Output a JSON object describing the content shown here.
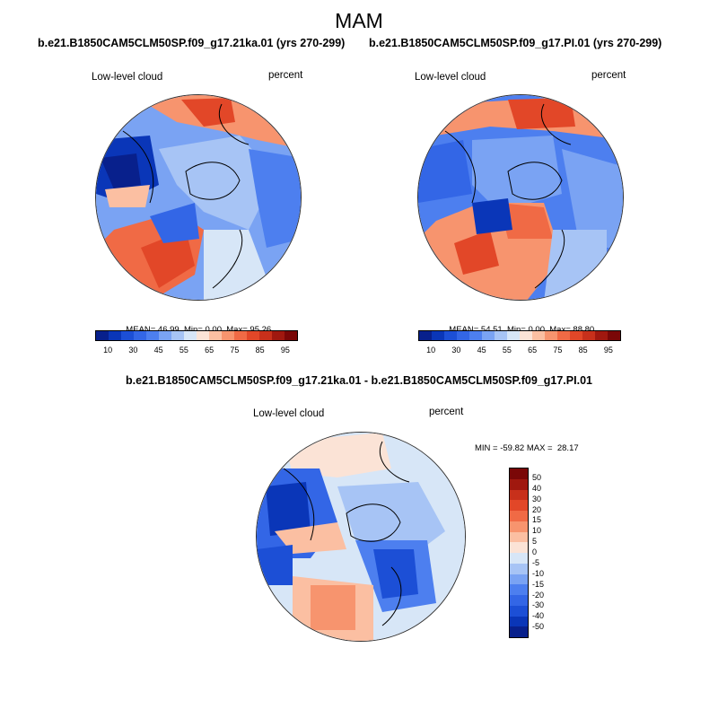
{
  "title": "MAM",
  "panels": {
    "top_left": {
      "case": "b.e21.B1850CAM5CLM50SP.f09_g17.21ka.01 (yrs 270-299)",
      "variable": "Low-level cloud",
      "units": "percent",
      "mean_label": "MEAN=",
      "mean": "46.99",
      "min_label": "Min=",
      "min": "0.00",
      "max_label": "Max=",
      "max": "95.26"
    },
    "top_right": {
      "case": "b.e21.B1850CAM5CLM50SP.f09_g17.PI.01 (yrs 270-299)",
      "variable": "Low-level cloud",
      "units": "percent",
      "mean_label": "MEAN=",
      "mean": "54.51",
      "min_label": "Min=",
      "min": "0.00",
      "max_label": "Max=",
      "max": "88.80"
    },
    "bottom": {
      "case": "b.e21.B1850CAM5CLM50SP.f09_g17.21ka.01 - b.e21.B1850CAM5CLM50SP.f09_g17.PI.01",
      "variable": "Low-level cloud",
      "units": "percent",
      "minmax": "MIN = -59.82 MAX =  28.17"
    }
  },
  "chart_data": [
    {
      "type": "heatmap",
      "projection": "north polar stereographic",
      "title": "b.e21.B1850CAM5CLM50SP.f09_g17.21ka.01 (yrs 270-299)",
      "variable": "Low-level cloud",
      "units": "percent",
      "stats": {
        "mean": 46.99,
        "min": 0.0,
        "max": 95.26
      },
      "colorbar": {
        "orientation": "horizontal",
        "levels": [
          10,
          20,
          30,
          40,
          45,
          50,
          55,
          60,
          65,
          70,
          75,
          80,
          85,
          90,
          95
        ],
        "tick_labels": [
          "10",
          "30",
          "45",
          "55",
          "65",
          "75",
          "85",
          "95"
        ]
      }
    },
    {
      "type": "heatmap",
      "projection": "north polar stereographic",
      "title": "b.e21.B1850CAM5CLM50SP.f09_g17.PI.01 (yrs 270-299)",
      "variable": "Low-level cloud",
      "units": "percent",
      "stats": {
        "mean": 54.51,
        "min": 0.0,
        "max": 88.8
      },
      "colorbar": {
        "orientation": "horizontal",
        "levels": [
          10,
          20,
          30,
          40,
          45,
          50,
          55,
          60,
          65,
          70,
          75,
          80,
          85,
          90,
          95
        ],
        "tick_labels": [
          "10",
          "30",
          "45",
          "55",
          "65",
          "75",
          "85",
          "95"
        ]
      }
    },
    {
      "type": "heatmap",
      "projection": "north polar stereographic",
      "title": "b.e21.B1850CAM5CLM50SP.f09_g17.21ka.01 - b.e21.B1850CAM5CLM50SP.f09_g17.PI.01",
      "variable": "Low-level cloud",
      "units": "percent",
      "stats": {
        "min": -59.82,
        "max": 28.17
      },
      "colorbar": {
        "orientation": "vertical",
        "levels": [
          -50,
          -40,
          -30,
          -20,
          -15,
          -10,
          -5,
          0,
          5,
          10,
          15,
          20,
          30,
          40,
          50
        ],
        "tick_labels": [
          "50",
          "40",
          "30",
          "20",
          "15",
          "10",
          "5",
          "0",
          "-5",
          "-10",
          "-15",
          "-20",
          "-30",
          "-40",
          "-50"
        ]
      }
    }
  ],
  "colors": {
    "palette_16": [
      "#08208c",
      "#0a36b8",
      "#1c4fd6",
      "#3366e6",
      "#4d7fef",
      "#7aa3f3",
      "#a7c4f5",
      "#d7e6f7",
      "#fbe3d6",
      "#fbbfa2",
      "#f7946e",
      "#f06a45",
      "#e24728",
      "#c8301b",
      "#a0180f",
      "#7a0707"
    ]
  }
}
